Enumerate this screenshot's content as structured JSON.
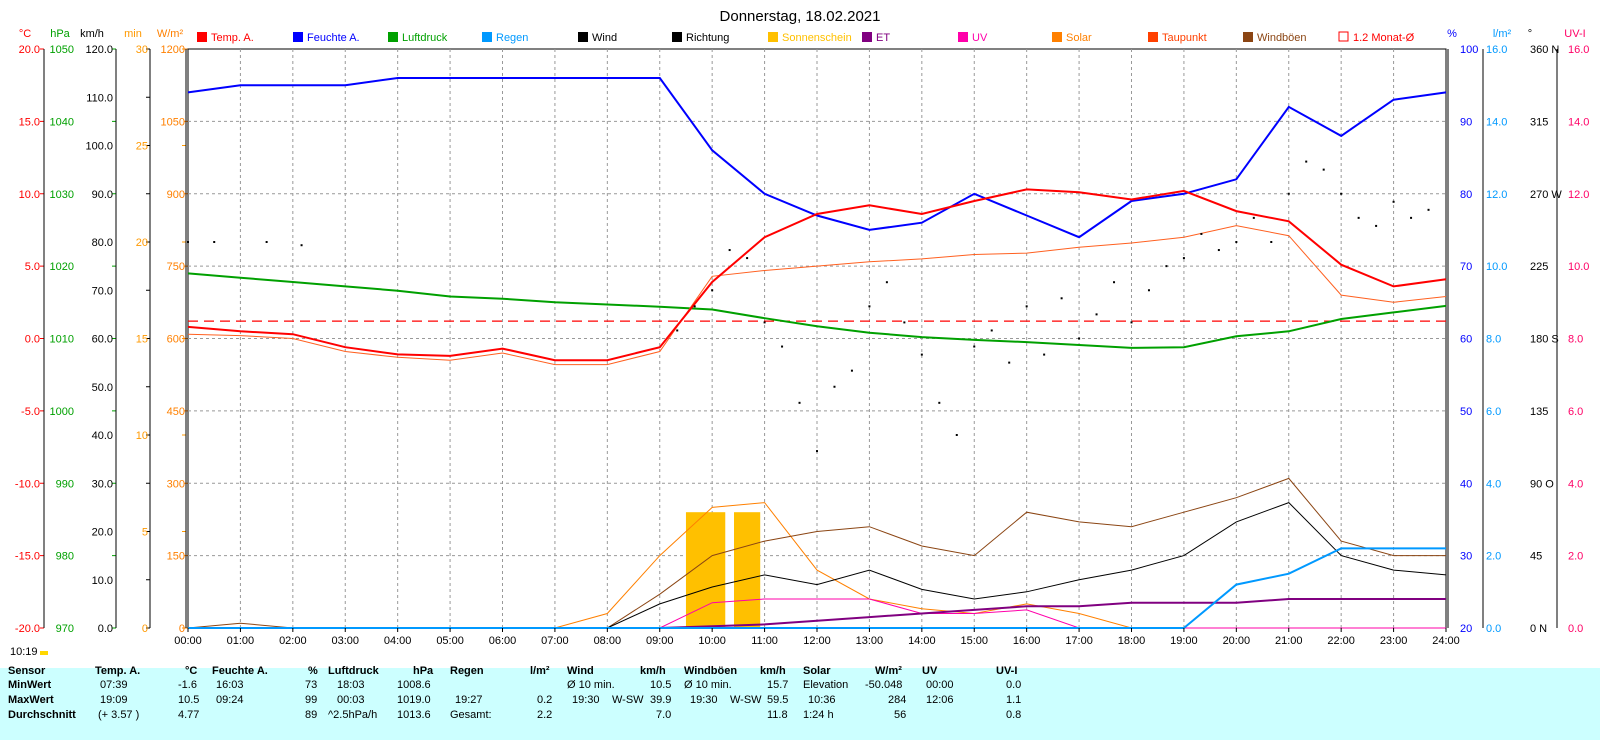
{
  "title": "Donnerstag, 18.02.2021",
  "timestamp": "10:19",
  "legend": [
    {
      "label": "Temp. A.",
      "color": "#ff0000"
    },
    {
      "label": "Feuchte A.",
      "color": "#0000ff"
    },
    {
      "label": "Luftdruck",
      "color": "#00a000"
    },
    {
      "label": "Regen",
      "color": "#0099ff"
    },
    {
      "label": "Wind",
      "color": "#000000"
    },
    {
      "label": "Richtung",
      "color": "#000000"
    },
    {
      "label": "Sonnenschein",
      "color": "#ffc000"
    },
    {
      "label": "ET",
      "color": "#800080"
    },
    {
      "label": "UV",
      "color": "#ff00aa"
    },
    {
      "label": "Solar",
      "color": "#ff8000"
    },
    {
      "label": "Taupunkt",
      "color": "#ff4000"
    },
    {
      "label": "Windböen",
      "color": "#8b4513"
    },
    {
      "label": "1.2 Monat-Ø",
      "color": "#ff0000"
    }
  ],
  "axes_left": [
    {
      "unit": "°C",
      "color": "#ff0000",
      "ticks": [
        "20.0",
        "15.0",
        "10.0",
        "5.0",
        "0.0",
        "-5.0",
        "-10.0",
        "-15.0",
        "-20.0"
      ]
    },
    {
      "unit": "hPa",
      "color": "#00a000",
      "ticks": [
        "1050",
        "1040",
        "1030",
        "1020",
        "1010",
        "1000",
        "990",
        "980",
        "970"
      ]
    },
    {
      "unit": "km/h",
      "color": "#000000",
      "ticks": [
        "120.0",
        "110.0",
        "100.0",
        "90.0",
        "80.0",
        "70.0",
        "60.0",
        "50.0",
        "40.0",
        "30.0",
        "20.0",
        "10.0",
        "0.0"
      ]
    },
    {
      "unit": "min",
      "color": "#ff9900",
      "ticks": [
        "30",
        "25",
        "20",
        "15",
        "10",
        "5",
        "0"
      ]
    },
    {
      "unit": "W/m²",
      "color": "#ff8000",
      "ticks": [
        "1200",
        "1050",
        "900",
        "750",
        "600",
        "450",
        "300",
        "150",
        "0"
      ]
    }
  ],
  "axes_right": [
    {
      "unit": "%",
      "color": "#0000ff",
      "ticks": [
        "100",
        "90",
        "80",
        "70",
        "60",
        "50",
        "40",
        "30",
        "20"
      ]
    },
    {
      "unit": "l/m²",
      "color": "#0099ff",
      "ticks": [
        "16.0",
        "14.0",
        "12.0",
        "10.0",
        "8.0",
        "6.0",
        "4.0",
        "2.0",
        "0.0"
      ]
    },
    {
      "unit": "°",
      "color": "#000000",
      "ticks": [
        "360 N",
        "315",
        "270 W",
        "225",
        "180 S",
        "135",
        "90 O",
        "45",
        "0 N"
      ]
    },
    {
      "unit": "UV-I",
      "color": "#ff0066",
      "ticks": [
        "16.0",
        "14.0",
        "12.0",
        "10.0",
        "8.0",
        "6.0",
        "4.0",
        "2.0",
        "0.0"
      ]
    }
  ],
  "x_ticks": [
    "00:00",
    "01:00",
    "02:00",
    "03:00",
    "04:00",
    "05:00",
    "06:00",
    "07:00",
    "08:00",
    "09:00",
    "10:00",
    "11:00",
    "12:00",
    "13:00",
    "14:00",
    "15:00",
    "16:00",
    "17:00",
    "18:00",
    "19:00",
    "20:00",
    "21:00",
    "22:00",
    "23:00",
    "24:00"
  ],
  "chart_data": {
    "type": "line",
    "title": "Donnerstag, 18.02.2021",
    "x": [
      "00:00",
      "01:00",
      "02:00",
      "03:00",
      "04:00",
      "05:00",
      "06:00",
      "07:00",
      "08:00",
      "09:00",
      "10:00",
      "11:00",
      "12:00",
      "13:00",
      "14:00",
      "15:00",
      "16:00",
      "17:00",
      "18:00",
      "19:00",
      "20:00",
      "21:00",
      "22:00",
      "23:00",
      "24:00"
    ],
    "series": [
      {
        "name": "Temp. A.",
        "unit": "°C",
        "color": "#ff0000",
        "values": [
          0.8,
          0.5,
          0.3,
          -0.6,
          -1.1,
          -1.2,
          -0.7,
          -1.5,
          -1.5,
          -0.6,
          3.9,
          7.0,
          8.6,
          9.2,
          8.6,
          9.5,
          10.3,
          10.1,
          9.6,
          10.2,
          8.8,
          8.1,
          5.1,
          3.6,
          4.1
        ]
      },
      {
        "name": "Taupunkt",
        "unit": "°C",
        "color": "#ff6020",
        "values": [
          0.3,
          0.2,
          0.0,
          -0.9,
          -1.3,
          -1.5,
          -1.0,
          -1.8,
          -1.8,
          -0.9,
          4.3,
          4.7,
          5.0,
          5.3,
          5.5,
          5.8,
          5.9,
          6.3,
          6.6,
          7.0,
          7.8,
          7.1,
          3.0,
          2.5,
          2.9
        ]
      },
      {
        "name": "Feuchte A.",
        "unit": "%",
        "color": "#0000ff",
        "values": [
          94,
          95,
          95,
          95,
          96,
          96,
          96,
          96,
          96,
          96,
          86,
          80,
          77,
          75,
          76,
          80,
          77,
          74,
          79,
          80,
          82,
          92,
          88,
          93,
          94
        ]
      },
      {
        "name": "Luftdruck",
        "unit": "hPa",
        "color": "#00a000",
        "values": [
          1019.0,
          1018.4,
          1017.8,
          1017.2,
          1016.6,
          1015.8,
          1015.5,
          1015.0,
          1014.7,
          1014.4,
          1014.0,
          1012.8,
          1011.7,
          1010.8,
          1010.2,
          1009.8,
          1009.5,
          1009.1,
          1008.7,
          1008.8,
          1010.3,
          1011.0,
          1012.7,
          1013.6,
          1014.5
        ]
      },
      {
        "name": "Wind",
        "unit": "km/h",
        "color": "#000000",
        "values": [
          0.0,
          0.0,
          0.0,
          0.0,
          0.0,
          0.0,
          0.0,
          0.0,
          0.0,
          5.0,
          8.5,
          11.0,
          9.0,
          12.0,
          8.0,
          6.0,
          7.5,
          10.0,
          12.0,
          15.0,
          22.0,
          26.0,
          15.0,
          12.0,
          11.0
        ]
      },
      {
        "name": "Windböen",
        "unit": "km/h",
        "color": "#8b4513",
        "values": [
          0.0,
          1.0,
          0.0,
          0.0,
          0.0,
          0.0,
          0.0,
          0.0,
          0.0,
          7.0,
          15.0,
          18.0,
          20.0,
          21.0,
          17.0,
          15.0,
          24.0,
          22.0,
          21.0,
          24.0,
          27.0,
          31.0,
          18.0,
          15.0,
          15.0
        ]
      },
      {
        "name": "Solar",
        "unit": "W/m²",
        "color": "#ff8000",
        "values": [
          0,
          0,
          0,
          0,
          0,
          0,
          0,
          0,
          30,
          150,
          250,
          260,
          120,
          60,
          40,
          30,
          50,
          30,
          0,
          0,
          0,
          0,
          0,
          0,
          0
        ]
      },
      {
        "name": "UV",
        "unit": "UV-I",
        "color": "#ff00aa",
        "values": [
          0,
          0,
          0,
          0,
          0,
          0,
          0,
          0,
          0,
          0,
          0.7,
          0.8,
          0.8,
          0.8,
          0.4,
          0.4,
          0.5,
          0,
          0,
          0,
          0,
          0,
          0,
          0,
          0
        ]
      },
      {
        "name": "ET",
        "unit": "l/m²",
        "color": "#800080",
        "values": [
          0,
          0,
          0,
          0,
          0,
          0,
          0,
          0,
          0,
          0,
          0.05,
          0.1,
          0.2,
          0.3,
          0.4,
          0.5,
          0.6,
          0.6,
          0.7,
          0.7,
          0.7,
          0.8,
          0.8,
          0.8,
          0.8
        ]
      },
      {
        "name": "Regen",
        "unit": "l/m²",
        "color": "#0099ff",
        "values": [
          0,
          0,
          0,
          0,
          0,
          0,
          0,
          0,
          0,
          0,
          0,
          0,
          0,
          0,
          0,
          0,
          0,
          0,
          0,
          0,
          1.2,
          1.5,
          2.2,
          2.2,
          2.2
        ]
      }
    ],
    "sunshine_bars": [
      {
        "start": "09:30",
        "end": "10:15",
        "minutes": 6
      },
      {
        "start": "10:25",
        "end": "10:55",
        "minutes": 6
      }
    ],
    "richtung_scatter_degrees": [
      {
        "t": "00:00",
        "deg": 240
      },
      {
        "t": "00:30",
        "deg": 240
      },
      {
        "t": "01:30",
        "deg": 240
      },
      {
        "t": "02:10",
        "deg": 238
      },
      {
        "t": "09:20",
        "deg": 185
      },
      {
        "t": "09:40",
        "deg": 200
      },
      {
        "t": "10:00",
        "deg": 210
      },
      {
        "t": "10:20",
        "deg": 235
      },
      {
        "t": "10:40",
        "deg": 230
      },
      {
        "t": "11:00",
        "deg": 190
      },
      {
        "t": "11:20",
        "deg": 175
      },
      {
        "t": "11:40",
        "deg": 140
      },
      {
        "t": "12:00",
        "deg": 110
      },
      {
        "t": "12:20",
        "deg": 150
      },
      {
        "t": "12:40",
        "deg": 160
      },
      {
        "t": "13:00",
        "deg": 200
      },
      {
        "t": "13:20",
        "deg": 215
      },
      {
        "t": "13:40",
        "deg": 190
      },
      {
        "t": "14:00",
        "deg": 170
      },
      {
        "t": "14:20",
        "deg": 140
      },
      {
        "t": "14:40",
        "deg": 120
      },
      {
        "t": "15:00",
        "deg": 175
      },
      {
        "t": "15:20",
        "deg": 185
      },
      {
        "t": "15:40",
        "deg": 165
      },
      {
        "t": "16:00",
        "deg": 200
      },
      {
        "t": "16:20",
        "deg": 170
      },
      {
        "t": "16:40",
        "deg": 205
      },
      {
        "t": "17:00",
        "deg": 180
      },
      {
        "t": "17:20",
        "deg": 195
      },
      {
        "t": "17:40",
        "deg": 215
      },
      {
        "t": "18:00",
        "deg": 190
      },
      {
        "t": "18:20",
        "deg": 210
      },
      {
        "t": "18:40",
        "deg": 225
      },
      {
        "t": "19:00",
        "deg": 230
      },
      {
        "t": "19:20",
        "deg": 245
      },
      {
        "t": "19:40",
        "deg": 235
      },
      {
        "t": "20:00",
        "deg": 240
      },
      {
        "t": "20:20",
        "deg": 255
      },
      {
        "t": "20:40",
        "deg": 240
      },
      {
        "t": "21:00",
        "deg": 270
      },
      {
        "t": "21:20",
        "deg": 290
      },
      {
        "t": "21:40",
        "deg": 285
      },
      {
        "t": "22:00",
        "deg": 270
      },
      {
        "t": "22:20",
        "deg": 255
      },
      {
        "t": "22:40",
        "deg": 250
      },
      {
        "t": "23:00",
        "deg": 265
      },
      {
        "t": "23:20",
        "deg": 255
      },
      {
        "t": "23:40",
        "deg": 260
      }
    ],
    "reference_line": {
      "name": "1.2 Monat-Ø",
      "unit": "°C",
      "value": 1.2
    },
    "ylim_temp": [
      -20,
      20
    ],
    "ylim_humidity": [
      20,
      100
    ],
    "ylim_pressure": [
      970,
      1050
    ],
    "ylim_wind": [
      0,
      120
    ],
    "ylim_solar": [
      0,
      1200
    ],
    "ylim_rain": [
      0,
      16
    ],
    "grid": true,
    "legend_position": "top"
  },
  "stats": {
    "row_labels": [
      "Sensor",
      "MinWert",
      "MaxWert",
      "Durchschnitt"
    ],
    "temp": {
      "title": "Temp. A.",
      "unit": "°C",
      "min_time": "07:39",
      "min_val": "-1.6",
      "max_time": "19:09",
      "max_val": "10.5",
      "avg_extra": "(+ 3.57 )",
      "avg_val": "4.77"
    },
    "hum": {
      "title": "Feuchte A.",
      "unit": "%",
      "min_time": "16:03",
      "min_val": "73",
      "max_time": "09:24",
      "max_val": "99",
      "avg_val": "89"
    },
    "press": {
      "title": "Luftdruck",
      "unit": "hPa",
      "min_time": "18:03",
      "min_val": "1008.6",
      "max_time": "00:03",
      "max_val": "1019.0",
      "avg_extra": "^2.5hPa/h",
      "avg_val": "1013.6"
    },
    "rain": {
      "title": "Regen",
      "unit": "l/m²",
      "max_time": "19:27",
      "max_val": "0.2",
      "avg_label": "Gesamt:",
      "avg_val": "2.2"
    },
    "wind": {
      "title": "Wind",
      "unit": "km/h",
      "min_label": "Ø 10 min.",
      "min_val": "10.5",
      "max_time": "19:30",
      "max_dir": "W-SW",
      "max_val": "39.9",
      "avg_val": "7.0"
    },
    "gust": {
      "title": "Windböen",
      "unit": "km/h",
      "min_label": "Ø 10 min.",
      "min_val": "15.7",
      "max_time": "19:30",
      "max_dir": "W-SW",
      "max_val": "59.5",
      "avg_val": "11.8"
    },
    "solar": {
      "title": "Solar",
      "unit": "W/m²",
      "min_label": "Elevation",
      "min_val": "-50.048",
      "max_time": "10:36",
      "max_val": "284",
      "avg_label": "1:24 h",
      "avg_val": "56"
    },
    "uv": {
      "title": "UV",
      "unit": "UV-I",
      "min_time": "00:00",
      "min_val": "0.0",
      "max_time": "12:06",
      "max_val": "1.1",
      "avg_val": "0.8"
    }
  }
}
